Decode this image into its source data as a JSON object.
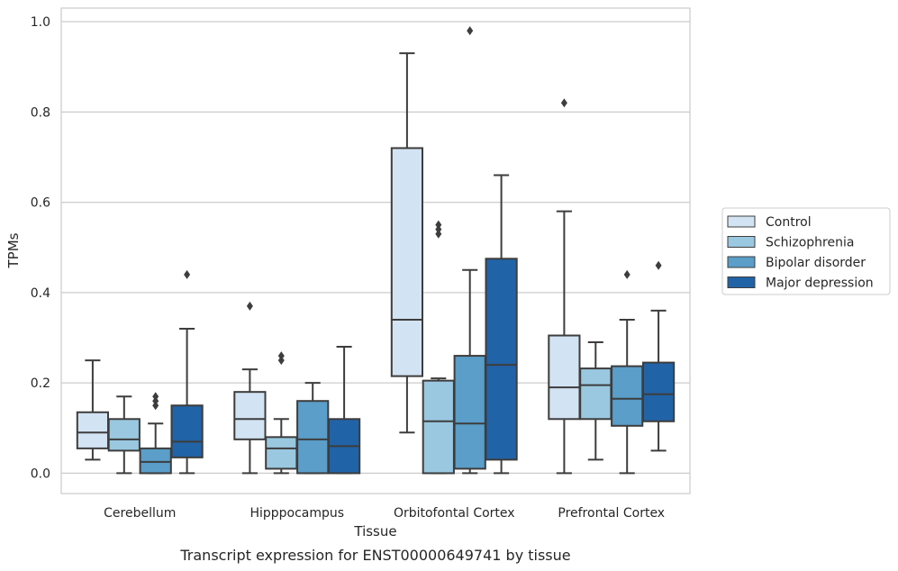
{
  "chart_data": {
    "type": "box",
    "xlabel": "Tissue",
    "ylabel": "TPMs",
    "caption": "Transcript expression for ENST00000649741 by tissue",
    "ylim": [
      -0.045,
      1.03
    ],
    "yticks": [
      "0.0",
      "0.2",
      "0.4",
      "0.6",
      "0.8",
      "1.0"
    ],
    "grid": "horizontal",
    "legend_position": "right",
    "categories": [
      "Cerebellum",
      "Hipppocampus",
      "Orbitofontal Cortex",
      "Prefrontal Cortex"
    ],
    "series": [
      {
        "name": "Control",
        "color": "#d2e3f3",
        "boxes": [
          {
            "whislo": 0.03,
            "q1": 0.055,
            "med": 0.09,
            "q3": 0.135,
            "whishi": 0.25,
            "fliers": []
          },
          {
            "whislo": 0.0,
            "q1": 0.075,
            "med": 0.12,
            "q3": 0.18,
            "whishi": 0.23,
            "fliers": [
              0.37
            ]
          },
          {
            "whislo": 0.09,
            "q1": 0.215,
            "med": 0.34,
            "q3": 0.72,
            "whishi": 0.93,
            "fliers": []
          },
          {
            "whislo": 0.0,
            "q1": 0.12,
            "med": 0.19,
            "q3": 0.305,
            "whishi": 0.58,
            "fliers": [
              0.82
            ]
          }
        ]
      },
      {
        "name": "Schizophrenia",
        "color": "#9ac8e0",
        "boxes": [
          {
            "whislo": 0.0,
            "q1": 0.05,
            "med": 0.075,
            "q3": 0.12,
            "whishi": 0.17,
            "fliers": []
          },
          {
            "whislo": 0.0,
            "q1": 0.01,
            "med": 0.055,
            "q3": 0.08,
            "whishi": 0.12,
            "fliers": [
              0.25,
              0.26
            ]
          },
          {
            "whislo": 0.0,
            "q1": 0.0,
            "med": 0.115,
            "q3": 0.205,
            "whishi": 0.21,
            "fliers": [
              0.53,
              0.54,
              0.55
            ]
          },
          {
            "whislo": 0.03,
            "q1": 0.12,
            "med": 0.195,
            "q3": 0.232,
            "whishi": 0.29,
            "fliers": []
          }
        ]
      },
      {
        "name": "Bipolar disorder",
        "color": "#5a9ec9",
        "boxes": [
          {
            "whislo": 0.0,
            "q1": 0.0,
            "med": 0.025,
            "q3": 0.055,
            "whishi": 0.11,
            "fliers": [
              0.15,
              0.16,
              0.17
            ]
          },
          {
            "whislo": 0.0,
            "q1": 0.0,
            "med": 0.075,
            "q3": 0.16,
            "whishi": 0.2,
            "fliers": []
          },
          {
            "whislo": 0.0,
            "q1": 0.01,
            "med": 0.11,
            "q3": 0.26,
            "whishi": 0.45,
            "fliers": [
              0.98
            ]
          },
          {
            "whislo": 0.0,
            "q1": 0.105,
            "med": 0.165,
            "q3": 0.237,
            "whishi": 0.34,
            "fliers": [
              0.44
            ]
          }
        ]
      },
      {
        "name": "Major depression",
        "color": "#2163a7",
        "boxes": [
          {
            "whislo": 0.0,
            "q1": 0.035,
            "med": 0.07,
            "q3": 0.15,
            "whishi": 0.32,
            "fliers": [
              0.44
            ]
          },
          {
            "whislo": 0.0,
            "q1": 0.0,
            "med": 0.06,
            "q3": 0.12,
            "whishi": 0.28,
            "fliers": []
          },
          {
            "whislo": 0.0,
            "q1": 0.03,
            "med": 0.24,
            "q3": 0.475,
            "whishi": 0.66,
            "fliers": []
          },
          {
            "whislo": 0.05,
            "q1": 0.115,
            "med": 0.175,
            "q3": 0.245,
            "whishi": 0.36,
            "fliers": [
              0.46
            ]
          }
        ]
      }
    ]
  }
}
